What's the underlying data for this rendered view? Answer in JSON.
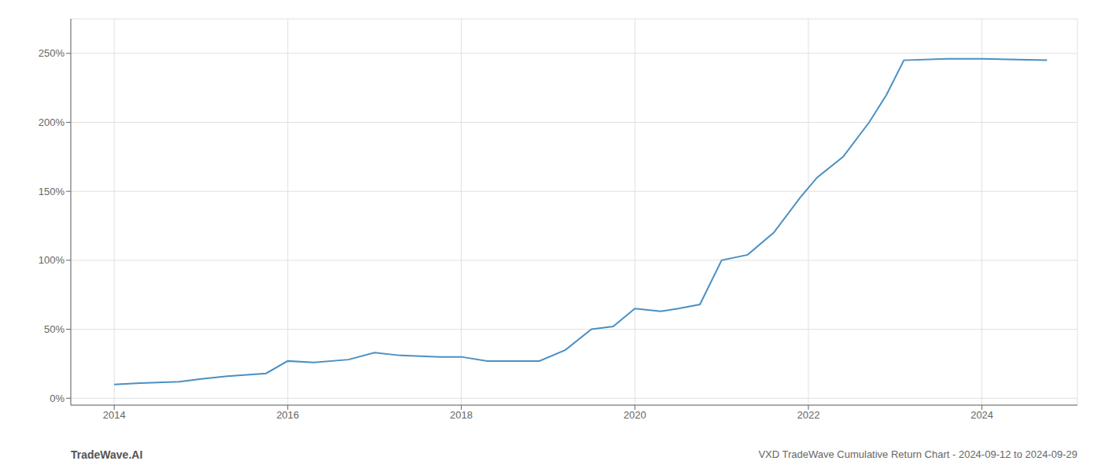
{
  "chart_data": {
    "type": "line",
    "title": "VXD TradeWave Cumulative Return Chart - 2024-09-12 to 2024-09-29",
    "annotations": [
      "TradeWave.AI"
    ],
    "x": [
      2014.0,
      2014.3,
      2014.75,
      2015.0,
      2015.3,
      2015.75,
      2016.0,
      2016.3,
      2016.7,
      2017.0,
      2017.3,
      2017.75,
      2018.0,
      2018.3,
      2018.6,
      2018.9,
      2019.2,
      2019.5,
      2019.75,
      2020.0,
      2020.3,
      2020.5,
      2020.75,
      2021.0,
      2021.3,
      2021.6,
      2021.9,
      2022.1,
      2022.4,
      2022.7,
      2022.9,
      2023.1,
      2023.6,
      2024.0,
      2024.75
    ],
    "values": [
      10,
      11,
      12,
      14,
      16,
      18,
      27,
      26,
      28,
      33,
      31,
      30,
      30,
      27,
      27,
      27,
      35,
      50,
      52,
      65,
      63,
      65,
      68,
      100,
      104,
      120,
      145,
      160,
      175,
      200,
      220,
      245,
      246,
      246,
      245
    ],
    "color": "#4a90c4",
    "xlim": [
      2013.5,
      2025.1
    ],
    "ylim": [
      -5,
      275
    ],
    "xticks": [
      2014,
      2016,
      2018,
      2020,
      2022,
      2024
    ],
    "yticks": [
      {
        "value": 0,
        "label": "0%"
      },
      {
        "value": 50,
        "label": "50%"
      },
      {
        "value": 100,
        "label": "100%"
      },
      {
        "value": 150,
        "label": "150%"
      },
      {
        "value": 200,
        "label": "200%"
      },
      {
        "value": 250,
        "label": "250%"
      }
    ],
    "grid": true
  }
}
